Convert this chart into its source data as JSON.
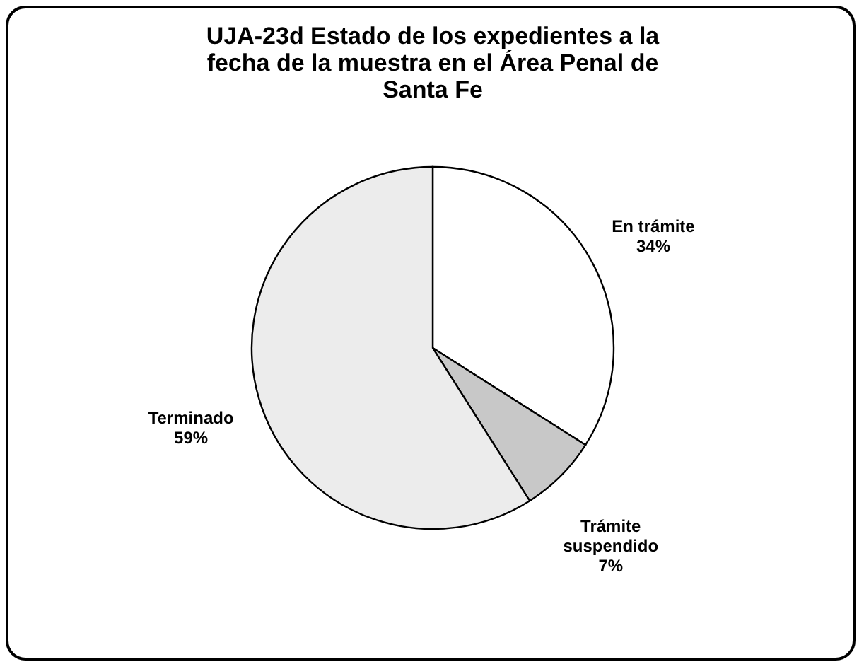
{
  "chart_data": {
    "type": "pie",
    "title": "UJA-23d Estado de los expedientes a la fecha de la muestra en el Área Penal de Santa Fe",
    "categories": [
      "En trámite",
      "Trámite suspendido",
      "Terminado"
    ],
    "values": [
      34,
      7,
      59
    ],
    "colors": [
      "#ffffff",
      "#c8c8c8",
      "#ececec"
    ],
    "value_labels": [
      "34%",
      "7%",
      "59%"
    ],
    "legend": false
  }
}
